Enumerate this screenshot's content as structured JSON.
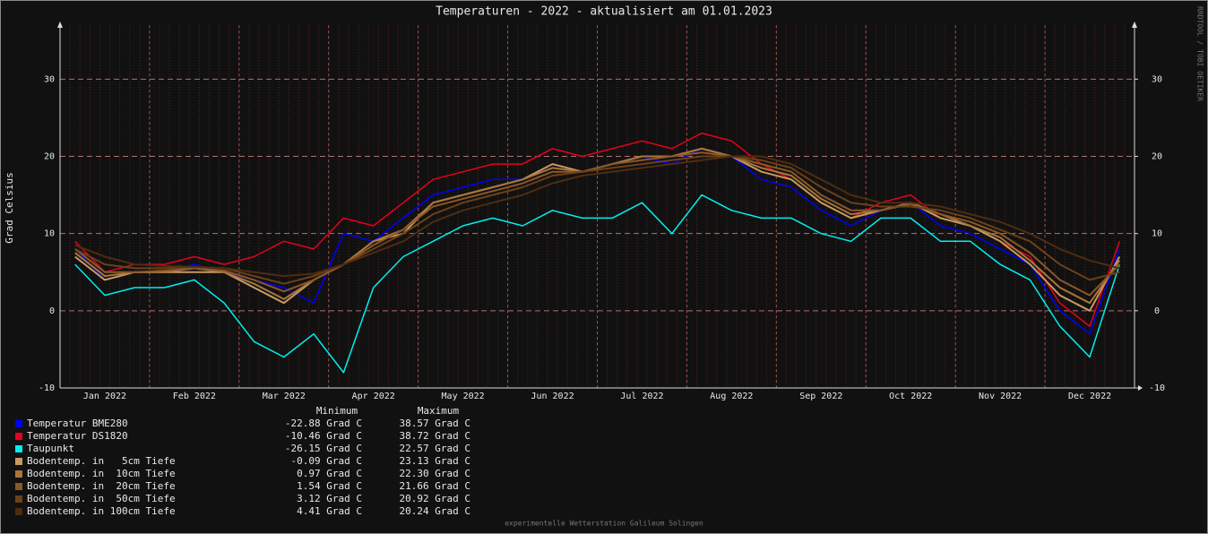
{
  "chart_data": {
    "type": "line",
    "title": "Temperaturen - 2022 - aktualisiert am 01.01.2023",
    "y_label": "Grad Celsius",
    "watermark": "RRDTOOL / TOBI OETIKER",
    "footer": "experimentelle Wetterstation Galileum Solingen",
    "stats_header": [
      "Minimum",
      "Maximum"
    ],
    "categories": [
      null,
      "Jan 2022",
      null,
      null,
      "Feb 2022",
      null,
      null,
      "Mar 2022",
      null,
      null,
      "Apr 2022",
      null,
      null,
      "May 2022",
      null,
      null,
      "Jun 2022",
      null,
      null,
      "Jul 2022",
      null,
      null,
      "Aug 2022",
      null,
      null,
      "Sep 2022",
      null,
      null,
      "Oct 2022",
      null,
      null,
      "Nov 2022",
      null,
      null,
      "Dec 2022",
      null
    ],
    "ylim": [
      -10,
      37
    ],
    "yticks": [
      -10,
      0,
      10,
      20,
      30
    ],
    "y2lim": [
      -10,
      37
    ],
    "y2ticks": [
      -10,
      0,
      10,
      20,
      30
    ],
    "grid": true,
    "series": [
      {
        "name": "Temperatur BME280",
        "color": "#0000ff",
        "min_label": "-22.88 Grad C",
        "max_label": "38.57 Grad C",
        "values": [
          8,
          4,
          5,
          5,
          6,
          5,
          4,
          3,
          1,
          10,
          9,
          12,
          15,
          16,
          17,
          17,
          19,
          18,
          19,
          20,
          19,
          21,
          20,
          17,
          16,
          13,
          11,
          13,
          14,
          11,
          10,
          8,
          6,
          0,
          -3,
          8
        ]
      },
      {
        "name": "Temperatur DS1820",
        "color": "#e8001c",
        "min_label": "-10.46 Grad C",
        "max_label": "38.72 Grad C",
        "values": [
          9,
          5,
          6,
          6,
          7,
          6,
          7,
          9,
          8,
          12,
          11,
          14,
          17,
          18,
          19,
          19,
          21,
          20,
          21,
          22,
          21,
          23,
          22,
          19,
          17,
          14,
          12,
          14,
          15,
          12,
          11,
          9,
          7,
          1,
          -2,
          9
        ]
      },
      {
        "name": "Taupunkt",
        "color": "#00f0f0",
        "min_label": "-26.15 Grad C",
        "max_label": "22.57 Grad C",
        "values": [
          6,
          2,
          3,
          3,
          4,
          1,
          -4,
          -6,
          -3,
          -8,
          3,
          7,
          9,
          11,
          12,
          11,
          13,
          12,
          12,
          14,
          10,
          15,
          13,
          12,
          12,
          10,
          9,
          12,
          12,
          9,
          9,
          6,
          4,
          -2,
          -6,
          6
        ]
      },
      {
        "name": "Bodentemp. in   5cm Tiefe",
        "color": "#c89a60",
        "min_label": "-0.09 Grad C",
        "max_label": "23.13 Grad C",
        "values": [
          7,
          4,
          5,
          5,
          5,
          5,
          3,
          1,
          4,
          6,
          9,
          10,
          14,
          15,
          16,
          17,
          19,
          18,
          19,
          20,
          20,
          21,
          20,
          18,
          17,
          14,
          12,
          13,
          14,
          12,
          11,
          9,
          6,
          2,
          0,
          7
        ]
      },
      {
        "name": "Bodentemp. in  10cm Tiefe",
        "color": "#a8763c",
        "min_label": "0.97 Grad C",
        "max_label": "22.30 Grad C",
        "values": [
          7.5,
          4.5,
          5,
          5,
          5.5,
          5,
          3.5,
          1.5,
          4,
          6,
          9,
          10.5,
          14,
          15,
          16,
          17,
          18.5,
          18,
          19,
          20,
          20,
          21,
          20,
          18.5,
          17.5,
          14.5,
          12.5,
          13,
          14,
          12.5,
          11,
          9.5,
          6.5,
          3,
          1,
          6.5
        ]
      },
      {
        "name": "Bodentemp. in  20cm Tiefe",
        "color": "#8a5828",
        "min_label": "1.54 Grad C",
        "max_label": "21.66 Grad C",
        "values": [
          8,
          5,
          5,
          5.2,
          5.5,
          5.2,
          4,
          2.5,
          4,
          6,
          8.5,
          10.5,
          13.5,
          14.5,
          15.5,
          16.5,
          18,
          18,
          19,
          19.5,
          20,
          20.5,
          20,
          19,
          18,
          15,
          13,
          13,
          13.8,
          12.5,
          11.5,
          10,
          7.5,
          4,
          2,
          6
        ]
      },
      {
        "name": "Bodentemp. in  50cm Tiefe",
        "color": "#6c4018",
        "min_label": "3.12 Grad C",
        "max_label": "20.92 Grad C",
        "values": [
          8,
          6,
          5.5,
          5.5,
          5.7,
          5.5,
          4.5,
          3.5,
          4.5,
          6,
          8,
          10,
          12.5,
          14,
          15,
          16,
          17.5,
          18,
          18.5,
          19,
          19.5,
          20,
          20,
          19.5,
          18.5,
          16,
          14,
          13.5,
          13.5,
          13,
          12,
          10.5,
          9,
          6,
          4,
          5
        ]
      },
      {
        "name": "Bodentemp. in 100cm Tiefe",
        "color": "#4e2c10",
        "min_label": "4.41 Grad C",
        "max_label": "20.24 Grad C",
        "values": [
          8.5,
          7,
          6,
          5.8,
          5.7,
          5.5,
          5,
          4.5,
          4.8,
          6,
          7.5,
          9,
          11.5,
          13,
          14,
          15,
          16.5,
          17.5,
          18,
          18.5,
          19,
          19.5,
          20,
          20,
          19,
          17,
          15,
          14,
          14,
          13.5,
          12.5,
          11.5,
          10,
          8,
          6.5,
          5.5
        ]
      }
    ]
  }
}
